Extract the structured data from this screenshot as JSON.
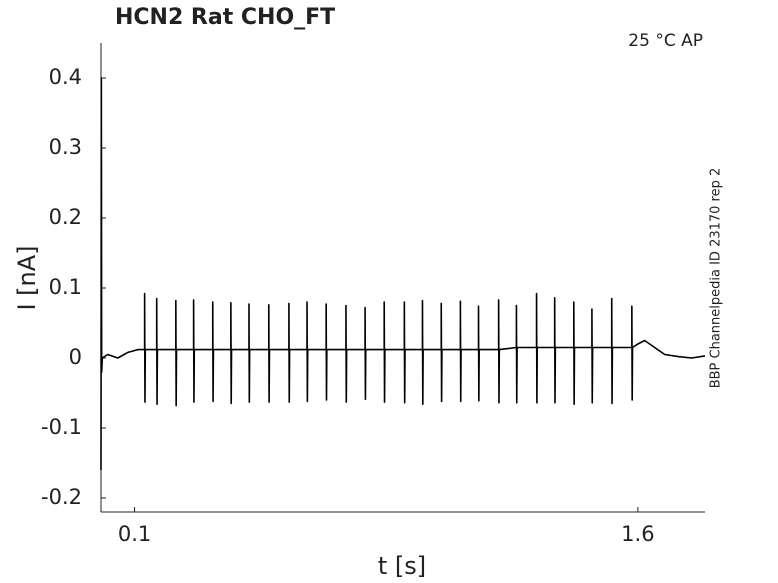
{
  "chart_data": {
    "type": "line",
    "title": "HCN2  Rat  CHO_FT",
    "annotation": "25 °C  AP",
    "side_note": "BBP Channelpedia ID 23170 rep 2",
    "xlabel": "t [s]",
    "ylabel": "I [nA]",
    "xlim": [
      0,
      1.8
    ],
    "ylim": [
      -0.22,
      0.45
    ],
    "xticks": [
      0.1,
      1.6
    ],
    "yticks": [
      -0.2,
      -0.1,
      0,
      0.1,
      0.2,
      0.3,
      0.4
    ],
    "grid": false,
    "color": "#000000",
    "x": [
      0,
      0.001,
      0.002,
      0.004,
      0.02,
      0.05,
      0.08,
      0.11,
      0.13,
      0.13,
      0.131,
      0.132,
      0.166,
      0.166,
      0.167,
      0.168,
      0.223,
      0.223,
      0.224,
      0.225,
      0.276,
      0.276,
      0.277,
      0.278,
      0.333,
      0.333,
      0.334,
      0.335,
      0.387,
      0.387,
      0.388,
      0.389,
      0.441,
      0.441,
      0.442,
      0.443,
      0.5,
      0.5,
      0.501,
      0.502,
      0.56,
      0.56,
      0.561,
      0.562,
      0.614,
      0.614,
      0.615,
      0.616,
      0.671,
      0.671,
      0.672,
      0.673,
      0.73,
      0.73,
      0.731,
      0.732,
      0.787,
      0.787,
      0.788,
      0.789,
      0.844,
      0.844,
      0.845,
      0.846,
      0.904,
      0.904,
      0.905,
      0.906,
      0.958,
      0.958,
      0.959,
      0.96,
      1.014,
      1.014,
      1.015,
      1.016,
      1.071,
      1.071,
      1.072,
      1.073,
      1.125,
      1.125,
      1.126,
      1.127,
      1.185,
      1.185,
      1.186,
      1.187,
      1.238,
      1.238,
      1.239,
      1.24,
      1.298,
      1.298,
      1.299,
      1.3,
      1.352,
      1.352,
      1.353,
      1.354,
      1.409,
      1.409,
      1.41,
      1.411,
      1.463,
      1.463,
      1.464,
      1.465,
      1.522,
      1.522,
      1.523,
      1.524,
      1.582,
      1.582,
      1.583,
      1.584,
      1.6,
      1.62,
      1.65,
      1.68,
      1.72,
      1.76,
      1.8
    ],
    "values": [
      -0.16,
      0.4,
      -0.02,
      0,
      0.005,
      0,
      0.008,
      0.012,
      0.012,
      0.092,
      -0.063,
      0.012,
      0.012,
      0.085,
      -0.066,
      0.012,
      0.012,
      0.082,
      -0.068,
      0.012,
      0.012,
      0.083,
      -0.063,
      0.012,
      0.012,
      0.08,
      -0.062,
      0.012,
      0.012,
      0.079,
      -0.065,
      0.012,
      0.012,
      0.077,
      -0.063,
      0.012,
      0.012,
      0.076,
      -0.063,
      0.012,
      0.012,
      0.078,
      -0.063,
      0.012,
      0.012,
      0.08,
      -0.062,
      0.012,
      0.012,
      0.077,
      -0.06,
      0.012,
      0.012,
      0.075,
      -0.063,
      0.012,
      0.012,
      0.072,
      -0.059,
      0.012,
      0.012,
      0.08,
      -0.063,
      0.012,
      0.012,
      0.08,
      -0.064,
      0.012,
      0.012,
      0.082,
      -0.066,
      0.012,
      0.012,
      0.078,
      -0.062,
      0.012,
      0.012,
      0.081,
      -0.062,
      0.012,
      0.012,
      0.074,
      -0.061,
      0.012,
      0.012,
      0.083,
      -0.064,
      0.012,
      0.015,
      0.075,
      -0.064,
      0.015,
      0.015,
      0.092,
      -0.064,
      0.015,
      0.015,
      0.086,
      -0.064,
      0.015,
      0.015,
      0.08,
      -0.066,
      0.015,
      0.015,
      0.07,
      -0.064,
      0.015,
      0.015,
      0.085,
      -0.065,
      0.015,
      0.015,
      0.074,
      -0.06,
      0.015,
      0.02,
      0.025,
      0.015,
      0.005,
      0.002,
      0,
      0.003
    ]
  }
}
